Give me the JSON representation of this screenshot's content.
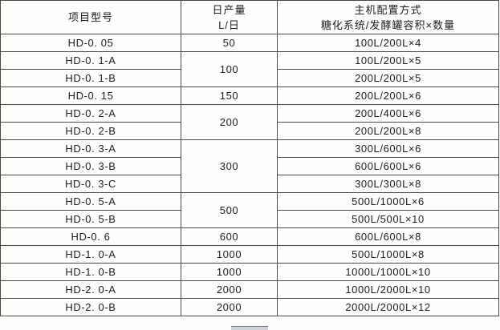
{
  "table": {
    "header": {
      "model": "项目型号",
      "output_line1": "日产量",
      "output_line2": "L/日",
      "config_line1": "主机配置方式",
      "config_line2": "糖化系统/发酵罐容积×数量"
    },
    "rows": [
      {
        "model": "HD-0. 05",
        "output": "50",
        "config": "100L/200L×4"
      },
      {
        "model": "HD-0. 1-A",
        "output": "100",
        "config": "100L/200L×5"
      },
      {
        "model": "HD-0. 1-B",
        "config": "200L/200L×5"
      },
      {
        "model": "HD-0. 15",
        "output": "150",
        "config": "200L/200L×6"
      },
      {
        "model": "HD-0. 2-A",
        "output": "200",
        "config": "200L/400L×6"
      },
      {
        "model": "HD-0. 2-B",
        "config": "200L/200L×8"
      },
      {
        "model": "HD-0. 3-A",
        "output": "300",
        "config": "300L/600L×6"
      },
      {
        "model": "HD-0. 3-B",
        "config": "600L/600L×6"
      },
      {
        "model": "HD-0. 3-C",
        "config": "300L/300L×8"
      },
      {
        "model": "HD-0. 5-A",
        "output": "500",
        "config": "500L/1000L×6"
      },
      {
        "model": "HD-0. 5-B",
        "config": "500L/500L×10"
      },
      {
        "model": "HD-0. 6",
        "output": "600",
        "config": "600L/600L×8"
      },
      {
        "model": "HD-1. 0-A",
        "output": "1000",
        "config": "500L/1000L×8"
      },
      {
        "model": "HD-1. 0-B",
        "output": "1000",
        "config": "1000L/1000L×10"
      },
      {
        "model": "HD-2. 0-A",
        "output": "2000",
        "config": "1000L/2000L×10"
      },
      {
        "model": "HD-2. 0-B",
        "output": "2000",
        "config": "2000L/2000L×12"
      }
    ]
  },
  "colors": {
    "border": "#4b4b43",
    "text": "#1c1c1c",
    "background": "#fdfdfc",
    "handle_fill": "#ccd3d9",
    "handle_border": "#6d7b88"
  },
  "icons": {
    "table_handle": "drag-handle"
  }
}
